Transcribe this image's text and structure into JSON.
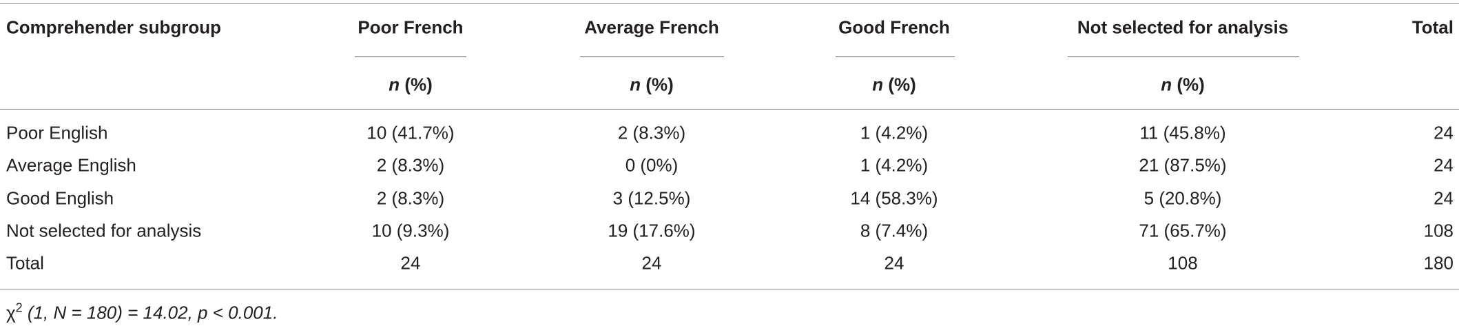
{
  "table": {
    "header": [
      "Comprehender subgroup",
      "Poor French",
      "Average French",
      "Good French",
      "Not selected for analysis",
      "Total"
    ],
    "subheader": [
      {
        "var": "n",
        "unit": "(%)"
      },
      {
        "var": "n",
        "unit": "(%)"
      },
      {
        "var": "n",
        "unit": "(%)"
      },
      {
        "var": "n",
        "unit": "(%)"
      }
    ],
    "rows": [
      [
        "Poor English",
        "10 (41.7%)",
        "2 (8.3%)",
        "1 (4.2%)",
        "11 (45.8%)",
        "24"
      ],
      [
        "Average English",
        "2 (8.3%)",
        "0 (0%)",
        "1 (4.2%)",
        "21 (87.5%)",
        "24"
      ],
      [
        "Good English",
        "2 (8.3%)",
        "3 (12.5%)",
        "14 (58.3%)",
        "5 (20.8%)",
        "24"
      ],
      [
        "Not selected for analysis",
        "10 (9.3%)",
        "19 (17.6%)",
        "8 (7.4%)",
        "71 (65.7%)",
        "108"
      ],
      [
        "Total",
        "24",
        "24",
        "24",
        "108",
        "180"
      ]
    ],
    "footnote": {
      "symbol": "χ",
      "superscript": "2",
      "text": " (1, N = 180) = 14.02, p < 0.001."
    }
  }
}
